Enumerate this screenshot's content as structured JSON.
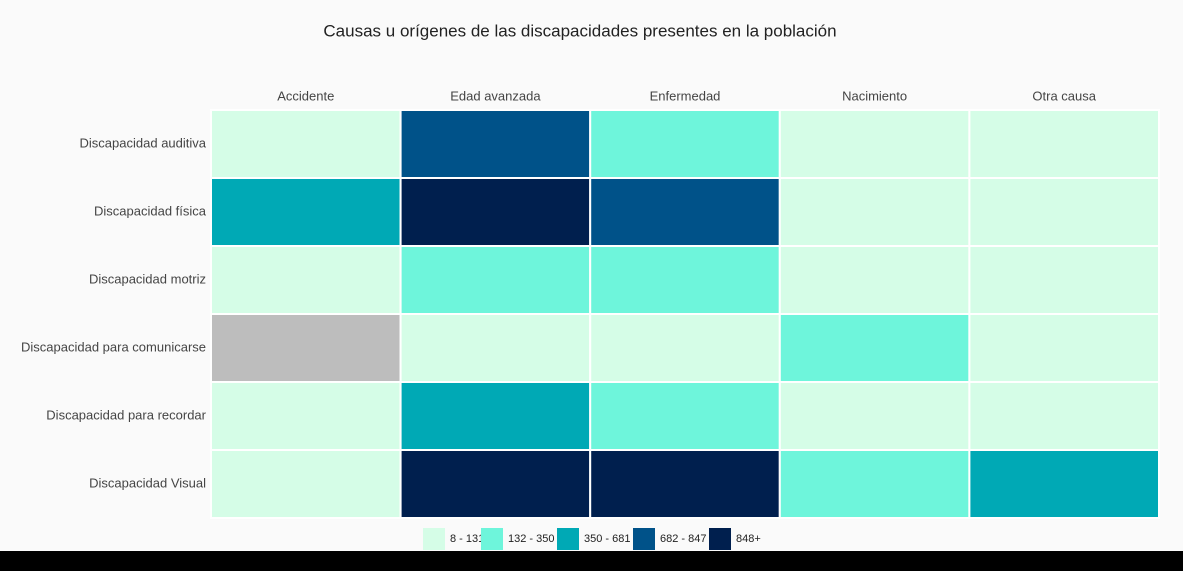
{
  "chart_data": {
    "type": "heatmap",
    "title": "Causas u orígenes de las discapacidades presentes en la población",
    "x_categories": [
      "Accidente",
      "Edad avanzada",
      "Enfermedad",
      "Nacimiento",
      "Otra causa"
    ],
    "y_categories": [
      "Discapacidad auditiva",
      "Discapacidad física",
      "Discapacidad motriz",
      "Discapacidad para comunicarse",
      "Discapacidad para recordar",
      "Discapacidad Visual"
    ],
    "values": [
      [
        60,
        760,
        240,
        40,
        50
      ],
      [
        500,
        950,
        760,
        70,
        60
      ],
      [
        80,
        240,
        240,
        60,
        50
      ],
      [
        null,
        50,
        60,
        200,
        20
      ],
      [
        70,
        500,
        240,
        50,
        30
      ],
      [
        90,
        900,
        900,
        240,
        500
      ]
    ],
    "bins": [
      {
        "label": "8 - 131",
        "min": 8,
        "max": 131,
        "color": "#d5fde7"
      },
      {
        "label": "132 - 350",
        "min": 132,
        "max": 350,
        "color": "#6ef5db"
      },
      {
        "label": "350 - 681",
        "min": 350,
        "max": 681,
        "color": "#00a9b5"
      },
      {
        "label": "682 - 847",
        "min": 682,
        "max": 847,
        "color": "#005289"
      },
      {
        "label": "848+",
        "min": 848,
        "color": "#001f4e"
      }
    ],
    "null_color": "#bdbdbd"
  }
}
